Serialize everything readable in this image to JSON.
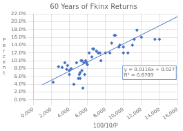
{
  "chart_data": {
    "type": "scatter",
    "title": "60 Years of Fkinx Returns",
    "xlabel": "100/10/P",
    "ylabel": "P\ne\nr\nc\ne\nn\nt",
    "xlim": [
      0,
      16000
    ],
    "ylim": [
      0.0,
      0.22
    ],
    "xticks": [
      {
        "value": 0,
        "label": "0.000"
      },
      {
        "value": 2000,
        "label": "2,000"
      },
      {
        "value": 4000,
        "label": "4,000"
      },
      {
        "value": 6000,
        "label": "6,000"
      },
      {
        "value": 8000,
        "label": "8,000"
      },
      {
        "value": 10000,
        "label": "10,000"
      },
      {
        "value": 12000,
        "label": "12,000"
      },
      {
        "value": 14000,
        "label": "14,000"
      },
      {
        "value": 16000,
        "label": "16,000"
      }
    ],
    "yticks": [
      {
        "value": 0.0,
        "label": "0.0%"
      },
      {
        "value": 0.02,
        "label": "2.0%"
      },
      {
        "value": 0.04,
        "label": "4.0%"
      },
      {
        "value": 0.06,
        "label": "6.0%"
      },
      {
        "value": 0.08,
        "label": "8.0%"
      },
      {
        "value": 0.1,
        "label": "10.0%"
      },
      {
        "value": 0.12,
        "label": "12.0%"
      },
      {
        "value": 0.14,
        "label": "14.0%"
      },
      {
        "value": 0.16,
        "label": "16.0%"
      },
      {
        "value": 0.18,
        "label": "18.0%"
      },
      {
        "value": 0.2,
        "label": "20.0%"
      },
      {
        "value": 0.22,
        "label": "22.0%"
      }
    ],
    "grid": true,
    "annotations": [
      "y = 0.0116x + 0.027",
      "R² = 0.6709"
    ],
    "series": [
      {
        "type": "scatter",
        "color": "#4472C4",
        "marker": "diamond",
        "x": [
          2200,
          2800,
          3200,
          3500,
          3700,
          3800,
          4000,
          4000,
          4200,
          4500,
          4800,
          5000,
          5100,
          5200,
          5200,
          5300,
          5400,
          5400,
          5500,
          5600,
          5700,
          5800,
          5900,
          6000,
          6200,
          6500,
          6600,
          6700,
          7000,
          7200,
          7400,
          7500,
          8000,
          8500,
          8700,
          9000,
          9100,
          9500,
          9600,
          10000,
          10000,
          10500,
          11000,
          11200,
          11500,
          12000,
          13500,
          14000
        ],
        "values": [
          0.045,
          0.085,
          0.083,
          0.095,
          0.078,
          0.088,
          0.075,
          0.065,
          0.08,
          0.04,
          0.095,
          0.055,
          0.065,
          0.055,
          0.07,
          0.1,
          0.1,
          0.075,
          0.03,
          0.095,
          0.065,
          0.1,
          0.095,
          0.09,
          0.12,
          0.11,
          0.13,
          0.13,
          0.125,
          0.12,
          0.12,
          0.1,
          0.12,
          0.12,
          0.145,
          0.165,
          0.165,
          0.135,
          0.14,
          0.135,
          0.12,
          0.12,
          0.14,
          0.155,
          0.178,
          0.16,
          0.155,
          0.155
        ]
      },
      {
        "type": "line",
        "color": "#4472C4",
        "line_style": "solid",
        "x": [
          1000,
          16000
        ],
        "values": [
          0.0386,
          0.2126
        ]
      }
    ]
  }
}
